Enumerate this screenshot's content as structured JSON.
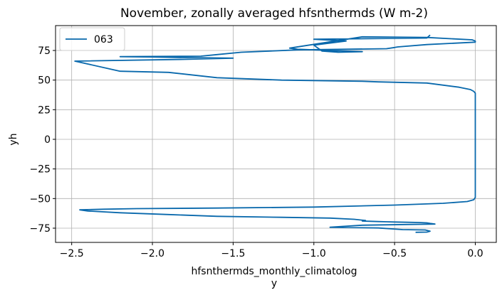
{
  "chart_data": {
    "type": "line",
    "title": "November, zonally averaged hfsnthermds (W m-2)",
    "xlabel_line1": "hfsnthermds_monthly_climatolog",
    "xlabel_line2": "y",
    "ylabel": "yh",
    "xlim": [
      -2.6,
      0.13
    ],
    "ylim": [
      -87,
      96
    ],
    "xticks": [
      -2.5,
      -2.0,
      -1.5,
      -1.0,
      -0.5,
      0.0
    ],
    "xtick_labels": [
      "−2.5",
      "−2.0",
      "−1.5",
      "−1.0",
      "−0.5",
      "0.0"
    ],
    "yticks": [
      -75,
      -50,
      -25,
      0,
      25,
      50,
      75
    ],
    "ytick_labels": [
      "−75",
      "−50",
      "−25",
      "0",
      "25",
      "50",
      "75"
    ],
    "grid": true,
    "legend_position": "top-left",
    "series": [
      {
        "name": "063",
        "color": "#0868ac",
        "x": [
          -0.37,
          -0.3,
          -0.28,
          -0.31,
          -0.45,
          -0.6,
          -0.9,
          -0.7,
          -0.25,
          -0.28,
          -0.3,
          -0.35,
          -0.42,
          -0.5,
          -0.55,
          -0.6,
          -0.65,
          -0.7,
          -0.68,
          -0.75,
          -0.9,
          -1.2,
          -1.6,
          -1.9,
          -2.2,
          -2.4,
          -2.45,
          -2.3,
          -2.1,
          -1.6,
          -1.0,
          -0.5,
          -0.2,
          -0.05,
          -0.01,
          0.0,
          0.0,
          0.0,
          0.0,
          0.0,
          0.0,
          0.0,
          -0.01,
          -0.03,
          -0.1,
          -0.3,
          -0.6,
          -0.7,
          -1.2,
          -1.6,
          -1.9,
          -2.2,
          -2.48,
          -1.8,
          -1.5,
          -1.8,
          -2.0,
          -2.2,
          -1.7,
          -1.6,
          -1.45,
          -1.1,
          -0.55,
          -0.5,
          -0.48,
          -0.3,
          0.0,
          0.0,
          -0.02,
          -0.3,
          -0.7,
          -1.15,
          -1.1,
          -0.7,
          -0.85,
          -0.95,
          -1.0,
          -0.8,
          -1.0,
          -0.3,
          -0.28
        ],
        "y": [
          -78.5,
          -78.3,
          -77.5,
          -76.5,
          -76.2,
          -74.8,
          -74.2,
          -72.5,
          -71.5,
          -71.0,
          -70.5,
          -70.2,
          -70.0,
          -69.8,
          -69.6,
          -69.4,
          -69.2,
          -69.0,
          -68.5,
          -67.5,
          -66.5,
          -65.8,
          -65.0,
          -63.5,
          -62.0,
          -60.5,
          -59.5,
          -59.0,
          -58.5,
          -58.0,
          -57.2,
          -55.5,
          -54.0,
          -52.5,
          -51.0,
          -49.0,
          -40.0,
          -20.0,
          0.0,
          20.0,
          35.0,
          39.0,
          40.5,
          42.0,
          44.0,
          47.5,
          48.5,
          49.0,
          50.0,
          52.0,
          56.5,
          57.5,
          66.0,
          67.5,
          68.5,
          69.0,
          69.5,
          69.8,
          70.2,
          71.5,
          73.5,
          75.5,
          76.5,
          77.5,
          78.0,
          80.0,
          82.0,
          83.0,
          84.0,
          86.0,
          86.5,
          77.0,
          76.0,
          74.0,
          73.5,
          74.5,
          79.5,
          83.0,
          84.5,
          85.5,
          88.0
        ]
      }
    ]
  }
}
